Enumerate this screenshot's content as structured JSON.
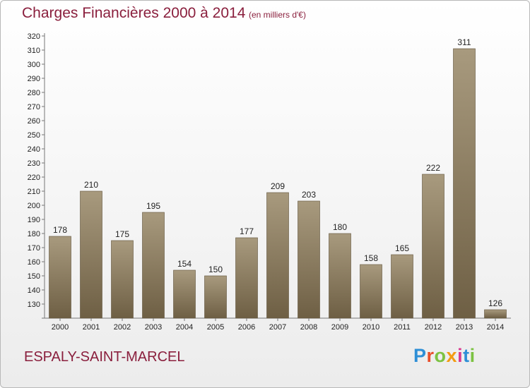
{
  "header": {
    "title": "Charges Financières 2000 à 2014",
    "subtitle": "(en milliers d'€)"
  },
  "footer": {
    "commune": "ESPALY-SAINT-MARCEL",
    "logo_text": "Proxiti"
  },
  "colors": {
    "title": "#8a1f3d",
    "bar_top": "#a89a7e",
    "bar_bottom": "#6e5f44",
    "logo": [
      "#2e8fd6",
      "#e94f2b",
      "#7cc242",
      "#f39c12",
      "#d93a8f",
      "#2e8fd6",
      "#7cc242"
    ]
  },
  "chart_data": {
    "type": "bar",
    "categories": [
      "2000",
      "2001",
      "2002",
      "2003",
      "2004",
      "2005",
      "2006",
      "2007",
      "2008",
      "2009",
      "2010",
      "2011",
      "2012",
      "2013",
      "2014"
    ],
    "values": [
      178,
      210,
      175,
      195,
      154,
      150,
      177,
      209,
      203,
      180,
      158,
      165,
      222,
      311,
      126
    ],
    "ylim": [
      120,
      320
    ],
    "ytick_step": 10,
    "grid": false,
    "title": "Charges Financières 2000 à 2014",
    "xlabel": "",
    "ylabel": ""
  }
}
